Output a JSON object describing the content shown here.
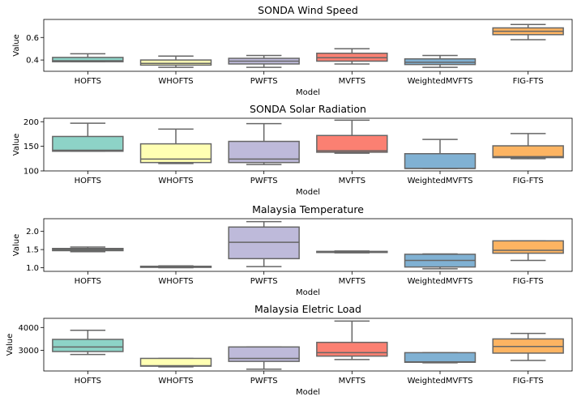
{
  "chart_data": [
    {
      "type": "box",
      "title": "SONDA Wind Speed",
      "xlabel": "Model",
      "ylabel": "Value",
      "ylim": [
        0.3,
        0.76
      ],
      "yticks": [
        0.4,
        0.6
      ],
      "yticklabels": [
        "0.4",
        "0.6"
      ],
      "categories": [
        "HOFTS",
        "WHOFTS",
        "PWFTS",
        "MVFTS",
        "WeightedMVFTS",
        "FIG-FTS"
      ],
      "boxes": [
        {
          "whislo": 0.385,
          "q1": 0.385,
          "median": 0.393,
          "q3": 0.423,
          "whishi": 0.455
        },
        {
          "whislo": 0.335,
          "q1": 0.355,
          "median": 0.37,
          "q3": 0.4,
          "whishi": 0.435
        },
        {
          "whislo": 0.335,
          "q1": 0.365,
          "median": 0.39,
          "q3": 0.415,
          "whishi": 0.44
        },
        {
          "whislo": 0.365,
          "q1": 0.39,
          "median": 0.42,
          "q3": 0.46,
          "whishi": 0.5
        },
        {
          "whislo": 0.335,
          "q1": 0.36,
          "median": 0.38,
          "q3": 0.41,
          "whishi": 0.44
        },
        {
          "whislo": 0.58,
          "q1": 0.625,
          "median": 0.655,
          "q3": 0.685,
          "whishi": 0.715
        }
      ]
    },
    {
      "type": "box",
      "title": "SONDA Solar Radiation",
      "xlabel": "Model",
      "ylabel": "Value",
      "ylim": [
        100,
        207
      ],
      "yticks": [
        100,
        150,
        200
      ],
      "yticklabels": [
        "100",
        "150",
        "200"
      ],
      "categories": [
        "HOFTS",
        "WHOFTS",
        "PWFTS",
        "MVFTS",
        "WeightedMVFTS",
        "FIG-FTS"
      ],
      "boxes": [
        {
          "whislo": 140,
          "q1": 140,
          "median": 142,
          "q3": 170,
          "whishi": 197
        },
        {
          "whislo": 115,
          "q1": 117,
          "median": 124,
          "q3": 155,
          "whishi": 185
        },
        {
          "whislo": 113,
          "q1": 117,
          "median": 124,
          "q3": 160,
          "whishi": 196
        },
        {
          "whislo": 136,
          "q1": 138,
          "median": 141,
          "q3": 172,
          "whishi": 203
        },
        {
          "whislo": 105,
          "q1": 105,
          "median": 105,
          "q3": 135,
          "whishi": 164
        },
        {
          "whislo": 125,
          "q1": 127,
          "median": 129,
          "q3": 151,
          "whishi": 176
        }
      ]
    },
    {
      "type": "box",
      "title": "Malaysia Temperature",
      "xlabel": "Model",
      "ylabel": "Value",
      "ylim": [
        0.9,
        2.35
      ],
      "yticks": [
        1.0,
        1.5,
        2.0
      ],
      "yticklabels": [
        "1.0",
        "1.5",
        "2.0"
      ],
      "categories": [
        "HOFTS",
        "WHOFTS",
        "PWFTS",
        "MVFTS",
        "WeightedMVFTS",
        "FIG-FTS"
      ],
      "boxes": [
        {
          "whislo": 1.44,
          "q1": 1.47,
          "median": 1.5,
          "q3": 1.53,
          "whishi": 1.57
        },
        {
          "whislo": 1.0,
          "q1": 1.01,
          "median": 1.02,
          "q3": 1.04,
          "whishi": 1.05
        },
        {
          "whislo": 1.03,
          "q1": 1.25,
          "median": 1.7,
          "q3": 2.12,
          "whishi": 2.27
        },
        {
          "whislo": 1.41,
          "q1": 1.42,
          "median": 1.43,
          "q3": 1.45,
          "whishi": 1.46
        },
        {
          "whislo": 0.97,
          "q1": 1.02,
          "median": 1.2,
          "q3": 1.37,
          "whishi": 1.38
        },
        {
          "whislo": 1.2,
          "q1": 1.4,
          "median": 1.48,
          "q3": 1.74,
          "whishi": 1.74
        }
      ]
    },
    {
      "type": "box",
      "title": "Malaysia Eletric Load",
      "xlabel": "Model",
      "ylabel": "Value",
      "ylim": [
        2100,
        4400
      ],
      "yticks": [
        3000,
        4000
      ],
      "yticklabels": [
        "3000",
        "4000"
      ],
      "categories": [
        "HOFTS",
        "WHOFTS",
        "PWFTS",
        "MVFTS",
        "WeightedMVFTS",
        "FIG-FTS"
      ],
      "boxes": [
        {
          "whislo": 2820,
          "q1": 2950,
          "median": 3150,
          "q3": 3480,
          "whishi": 3880
        },
        {
          "whislo": 2280,
          "q1": 2310,
          "median": 2330,
          "q3": 2650,
          "whishi": 2650
        },
        {
          "whislo": 2180,
          "q1": 2520,
          "median": 2650,
          "q3": 3150,
          "whishi": 3150
        },
        {
          "whislo": 2600,
          "q1": 2750,
          "median": 2900,
          "q3": 3350,
          "whishi": 4280
        },
        {
          "whislo": 2460,
          "q1": 2480,
          "median": 2500,
          "q3": 2900,
          "whishi": 2900
        },
        {
          "whislo": 2560,
          "q1": 2880,
          "median": 3170,
          "q3": 3500,
          "whishi": 3740
        }
      ]
    }
  ],
  "colors": {
    "box_fills": [
      "#8dd3c7",
      "#ffffb3",
      "#bebada",
      "#fb8072",
      "#80b1d3",
      "#fdb462"
    ],
    "edge": "#666666",
    "axes": "#000000"
  }
}
